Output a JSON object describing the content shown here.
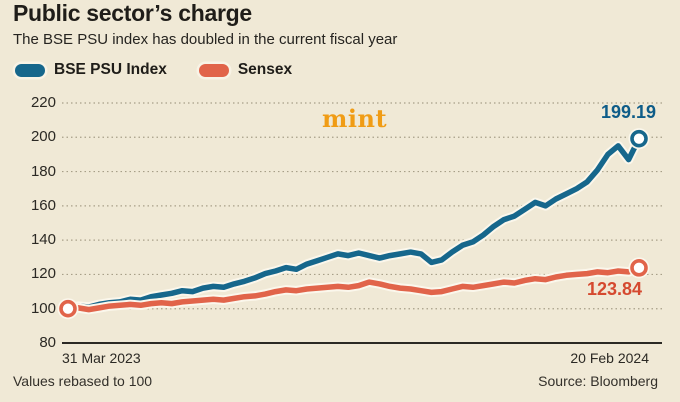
{
  "header": {
    "title": "Public sector’s charge",
    "subtitle": "The BSE PSU index has doubled in the current fiscal year"
  },
  "branding": {
    "logo": "mint",
    "logo_color": "#F09C15"
  },
  "legend": {
    "items": [
      {
        "label": "BSE PSU Index",
        "color": "#16678C"
      },
      {
        "label": "Sensex",
        "color": "#E1644A"
      }
    ]
  },
  "chart_data": {
    "type": "line",
    "title": "Public sector’s charge",
    "xlabel": "",
    "ylabel": "",
    "x_start_label": "31 Mar 2023",
    "x_end_label": "20 Feb 2024",
    "ylim": [
      80,
      220
    ],
    "yticks": [
      220,
      200,
      180,
      160,
      140,
      120,
      100,
      80
    ],
    "grid": "dotted-horizontal",
    "grid_color": "#A79F88",
    "axis_color": "#2B2924",
    "background": "#F0E9D6",
    "start_value": 100,
    "series": [
      {
        "name": "BSE PSU Index",
        "color": "#16678C",
        "end_value": 199.19,
        "values": [
          100,
          101.5,
          101,
          102.5,
          103.5,
          104,
          105.5,
          105,
          107,
          108,
          109,
          110.5,
          110,
          112,
          113,
          112.5,
          114.5,
          116,
          118,
          120.5,
          122,
          124,
          123,
          126,
          128,
          130,
          132,
          131,
          132.5,
          131,
          129.5,
          131,
          132,
          133,
          132,
          127,
          128.5,
          133,
          137,
          139,
          143,
          148,
          152,
          154,
          158,
          162,
          160,
          164,
          167,
          170,
          174,
          181,
          190,
          195,
          187,
          199.19
        ]
      },
      {
        "name": "Sensex",
        "color": "#E1644A",
        "end_value": 123.84,
        "values": [
          100,
          100.5,
          99.5,
          100.5,
          101.5,
          102,
          102.5,
          102,
          103,
          103.5,
          103,
          104,
          104.5,
          105,
          105.5,
          105,
          106,
          107,
          107.5,
          108.5,
          110,
          111,
          110.5,
          111.5,
          112,
          112.5,
          113,
          112.5,
          113.5,
          115.5,
          114.5,
          113,
          112,
          111.5,
          110.5,
          109.5,
          110,
          111.5,
          113,
          112.5,
          113.5,
          114.5,
          115.5,
          115,
          116.5,
          117.5,
          117,
          118.5,
          119.5,
          120,
          120.5,
          121.5,
          121,
          122,
          121.5,
          123.84
        ]
      }
    ],
    "end_labels": {
      "bse_psu": "199.19",
      "sensex": "123.84"
    },
    "legend_position": "top-left"
  },
  "footer": {
    "note": "Values rebased to 100",
    "source": "Source: Bloomberg"
  }
}
